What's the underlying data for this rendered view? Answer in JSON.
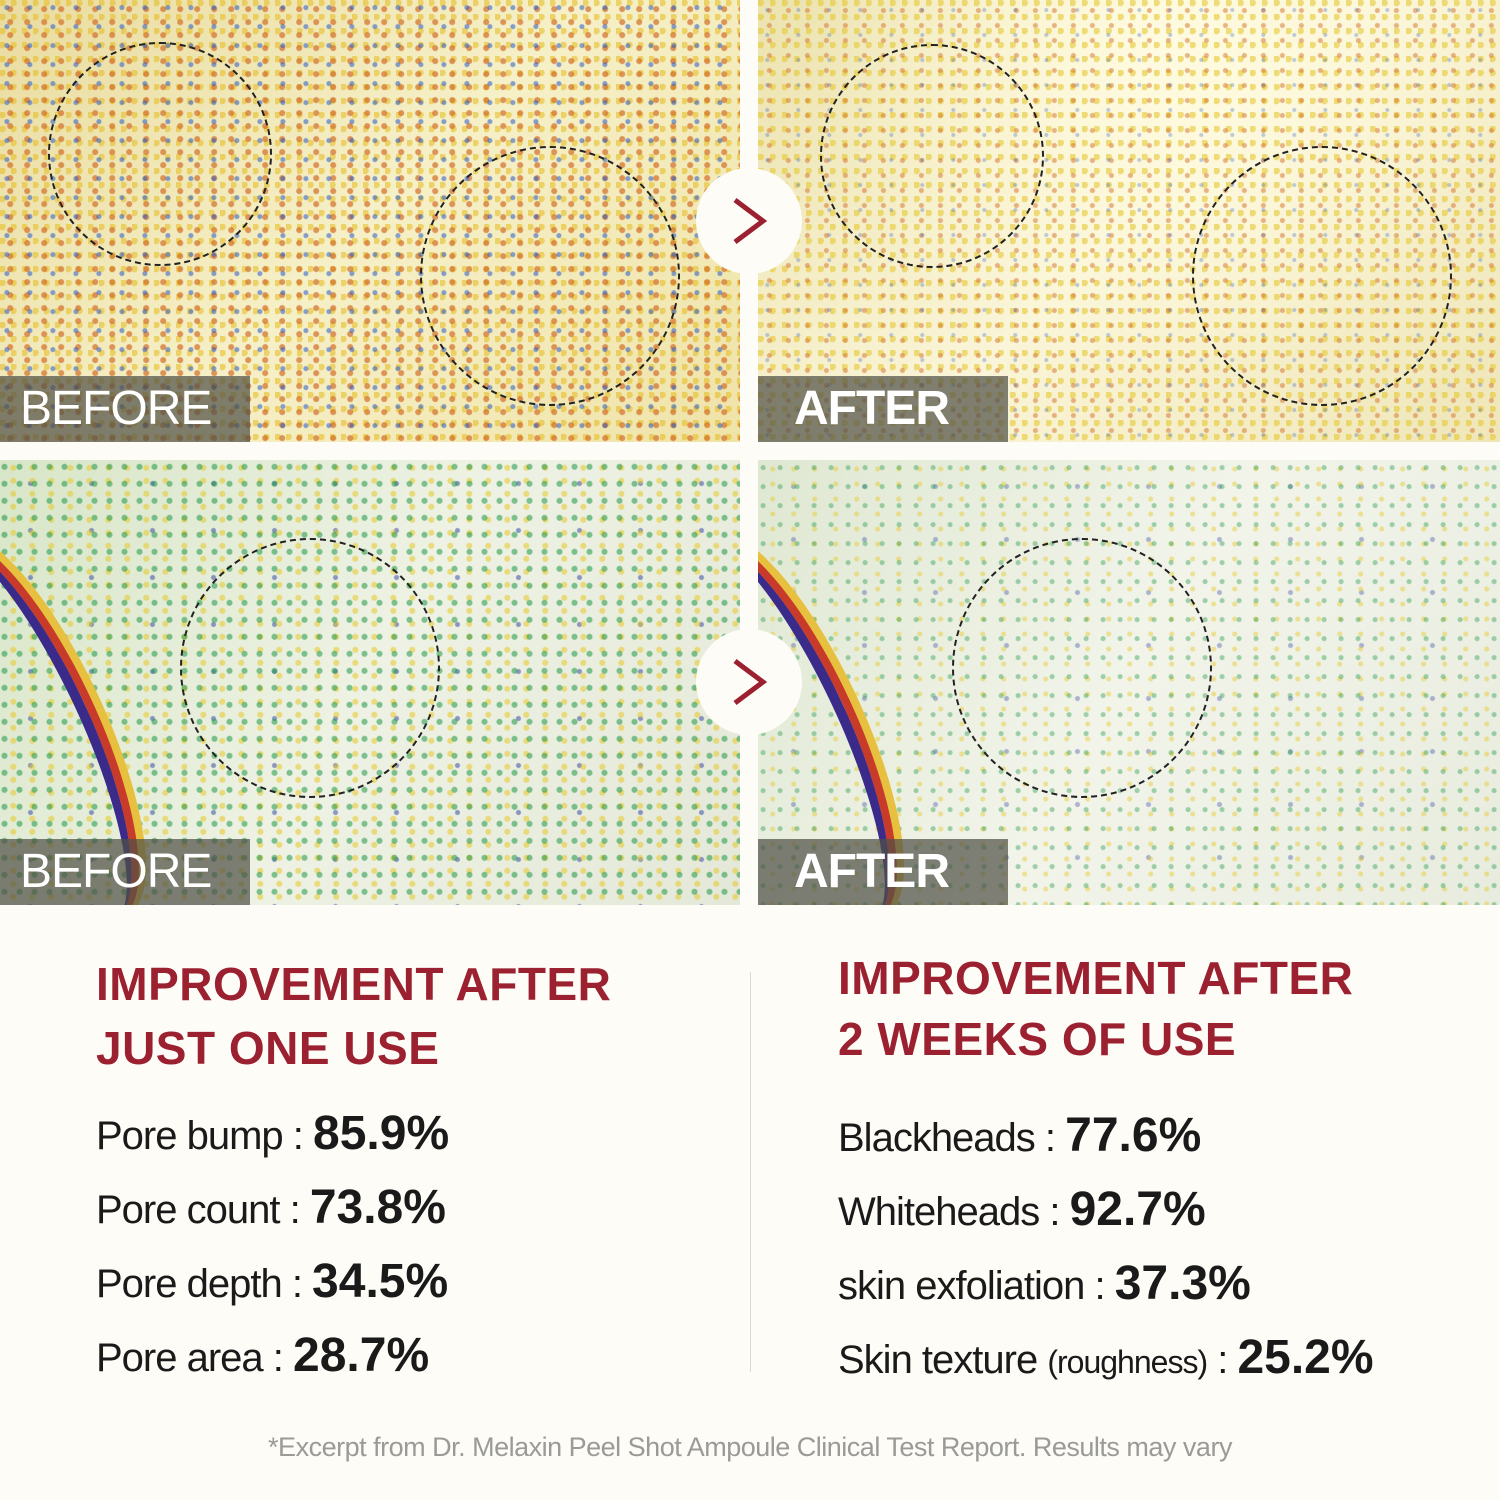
{
  "panels": {
    "top_before": {
      "label": "BEFORE"
    },
    "top_after": {
      "label": "AFTER"
    },
    "bottom_before": {
      "label": "BEFORE"
    },
    "bottom_after": {
      "label": "AFTER"
    }
  },
  "arrow_icon": "chevron-right-icon",
  "colors": {
    "accent": "#9b2030",
    "background": "#fdfcf6"
  },
  "left": {
    "heading_line1": "IMPROVEMENT AFTER",
    "heading_line2": "JUST ONE USE",
    "stats": [
      {
        "label": "Pore bump",
        "value": "85.9%"
      },
      {
        "label": "Pore count",
        "value": "73.8%"
      },
      {
        "label": "Pore depth",
        "value": "34.5%"
      },
      {
        "label": "Pore area",
        "value": "28.7%"
      }
    ]
  },
  "right": {
    "heading_line1": "IMPROVEMENT AFTER",
    "heading_line2": "2 WEEKS OF USE",
    "stats": [
      {
        "label": "Blackheads",
        "value": "77.6%"
      },
      {
        "label": "Whiteheads",
        "value": "92.7%"
      },
      {
        "label": "skin exfoliation",
        "value": "37.3%"
      },
      {
        "label": "Skin texture",
        "note": "(roughness)",
        "value": "25.2%"
      }
    ]
  },
  "footnote": "*Excerpt from Dr. Melaxin Peel Shot Ampoule Clinical Test Report. Results may vary"
}
